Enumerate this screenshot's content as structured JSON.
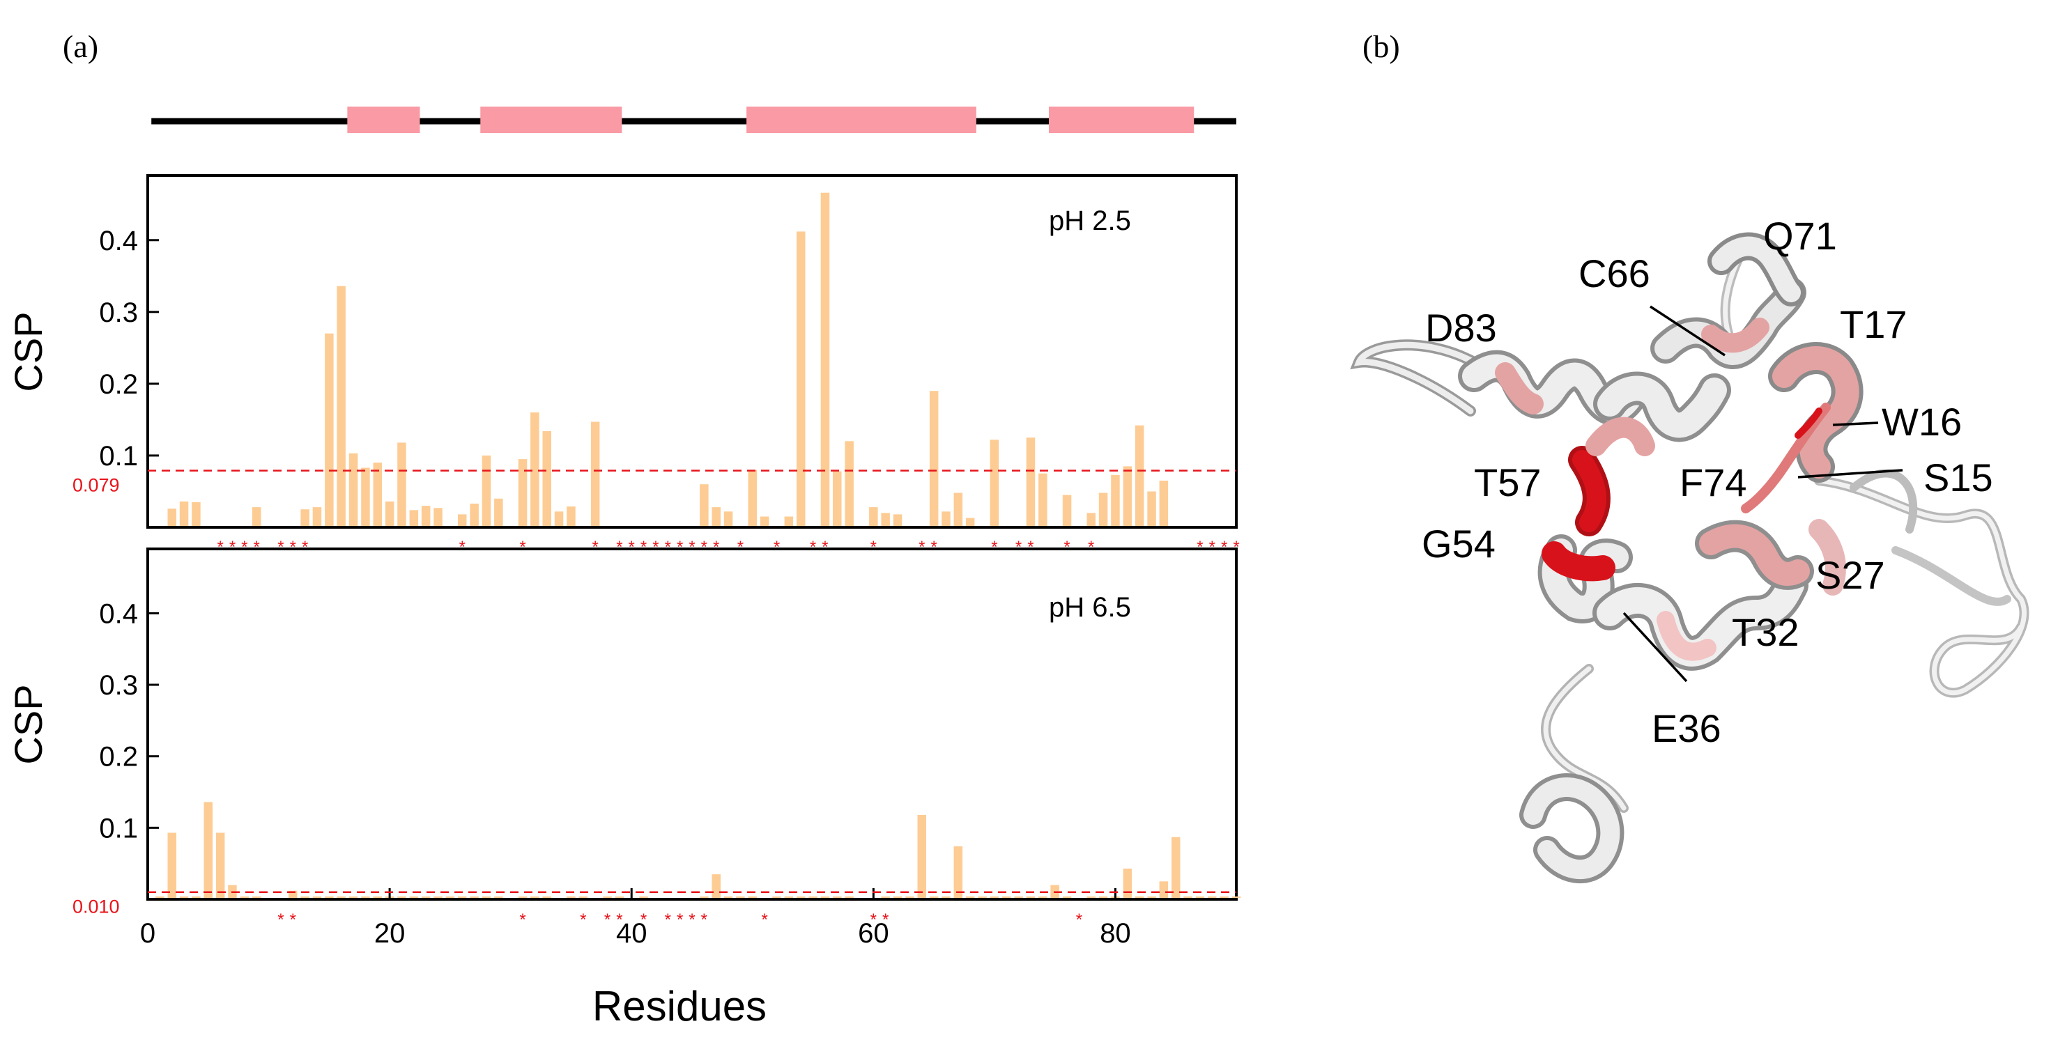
{
  "panel_a_label": "(a)",
  "panel_b_label": "(b)",
  "colors": {
    "bar": "#fdcc94",
    "helix_block": "#f99aa4",
    "coil_line": "#000000",
    "threshold": "#e8151b",
    "star": "#e8151b",
    "ribbon_white": "#ececec",
    "ribbon_grey": "#8a8a8a",
    "ribbon_pink": "#e4a3a3",
    "ribbon_red": "#d8121b"
  },
  "secondary_structure": {
    "helices": [
      [
        16.5,
        22.5
      ],
      [
        27.5,
        39.2
      ],
      [
        49.5,
        68.5
      ],
      [
        74.5,
        86.5
      ]
    ]
  },
  "chart_data": [
    {
      "type": "bar",
      "panel": "pH 2.5",
      "annotation": "pH 2.5",
      "ylabel": "CSP",
      "xlabel": "",
      "xlim": [
        0,
        90
      ],
      "ylim": [
        0,
        0.49
      ],
      "yticks": [
        "0.1",
        "0.2",
        "0.3",
        "0.4"
      ],
      "threshold_label": "0.079",
      "threshold": 0.079,
      "x": [
        1,
        2,
        3,
        4,
        5,
        6,
        7,
        8,
        9,
        10,
        11,
        12,
        13,
        14,
        15,
        16,
        17,
        18,
        19,
        20,
        21,
        22,
        23,
        24,
        25,
        26,
        27,
        28,
        29,
        30,
        31,
        32,
        33,
        34,
        35,
        36,
        37,
        38,
        39,
        40,
        41,
        42,
        43,
        44,
        45,
        46,
        47,
        48,
        49,
        50,
        51,
        52,
        53,
        54,
        55,
        56,
        57,
        58,
        59,
        60,
        61,
        62,
        63,
        64,
        65,
        66,
        67,
        68,
        69,
        70,
        71,
        72,
        73,
        74,
        75,
        76,
        77,
        78,
        79,
        80,
        81,
        82,
        83,
        84,
        85,
        86,
        87,
        88,
        89,
        90
      ],
      "values": [
        0,
        0.026,
        0.036,
        0.035,
        0,
        0,
        0,
        0,
        0.028,
        0,
        0,
        0,
        0.025,
        0.028,
        0.27,
        0.336,
        0.103,
        0.083,
        0.09,
        0.036,
        0.118,
        0.024,
        0.03,
        0.027,
        0,
        0.018,
        0.033,
        0.1,
        0.04,
        0,
        0.095,
        0.16,
        0.134,
        0.022,
        0.029,
        0,
        0.147,
        0,
        0,
        0,
        0,
        0,
        0,
        0,
        0,
        0.06,
        0.028,
        0.022,
        0,
        0.08,
        0.015,
        0,
        0.015,
        0.412,
        0,
        0.466,
        0.078,
        0.12,
        0,
        0.028,
        0.02,
        0.018,
        0,
        0,
        0.19,
        0.022,
        0.048,
        0.013,
        0,
        0.122,
        0,
        0,
        0.125,
        0.075,
        0,
        0.045,
        0,
        0.02,
        0.048,
        0.073,
        0.085,
        0.142,
        0.05,
        0.065,
        0,
        0,
        0,
        0,
        0,
        0
      ],
      "unassigned_marker": "*",
      "unassigned": [
        6,
        7,
        8,
        9,
        11,
        12,
        13,
        26,
        31,
        37,
        39,
        40,
        41,
        42,
        43,
        44,
        45,
        46,
        47,
        49,
        52,
        55,
        56,
        60,
        64,
        65,
        70,
        72,
        73,
        76,
        78,
        87,
        88,
        89,
        90
      ]
    },
    {
      "type": "bar",
      "panel": "pH 6.5",
      "annotation": "pH 6.5",
      "ylabel": "CSP",
      "xlabel": "Residues",
      "xlim": [
        0,
        90
      ],
      "ylim": [
        0,
        0.49
      ],
      "xticks": [
        "0",
        "20",
        "40",
        "60",
        "80"
      ],
      "yticks": [
        "0.1",
        "0.2",
        "0.3",
        "0.4"
      ],
      "threshold_label": "0.010",
      "threshold": 0.01,
      "x": [
        1,
        2,
        3,
        4,
        5,
        6,
        7,
        8,
        9,
        10,
        11,
        12,
        13,
        14,
        15,
        16,
        17,
        18,
        19,
        20,
        21,
        22,
        23,
        24,
        25,
        26,
        27,
        28,
        29,
        30,
        31,
        32,
        33,
        34,
        35,
        36,
        37,
        38,
        39,
        40,
        41,
        42,
        43,
        44,
        45,
        46,
        47,
        48,
        49,
        50,
        51,
        52,
        53,
        54,
        55,
        56,
        57,
        58,
        59,
        60,
        61,
        62,
        63,
        64,
        65,
        66,
        67,
        68,
        69,
        70,
        71,
        72,
        73,
        74,
        75,
        76,
        77,
        78,
        79,
        80,
        81,
        82,
        83,
        84,
        85,
        86,
        87,
        88,
        89,
        90
      ],
      "values": [
        0.004,
        0.093,
        0.004,
        0.004,
        0.136,
        0.093,
        0.02,
        0.004,
        0.004,
        0,
        0,
        0.012,
        0.004,
        0.004,
        0.004,
        0.004,
        0.004,
        0.004,
        0.004,
        0.004,
        0.004,
        0.004,
        0.004,
        0.004,
        0.004,
        0.004,
        0.004,
        0.004,
        0.004,
        0,
        0.004,
        0.004,
        0.004,
        0,
        0.004,
        0.004,
        0,
        0.004,
        0.004,
        0,
        0.004,
        0,
        0,
        0,
        0,
        0.004,
        0.035,
        0.004,
        0.004,
        0.004,
        0,
        0.004,
        0.004,
        0.004,
        0.004,
        0.004,
        0.004,
        0.004,
        0,
        0,
        0.004,
        0.004,
        0.004,
        0.118,
        0.004,
        0.004,
        0.074,
        0.004,
        0.004,
        0.004,
        0.004,
        0.004,
        0.004,
        0.004,
        0.02,
        0.004,
        0,
        0.004,
        0.004,
        0.004,
        0.043,
        0.004,
        0.004,
        0.025,
        0.087,
        0.004,
        0.004,
        0.004,
        0.004,
        0.004
      ],
      "unassigned_marker": "*",
      "unassigned": [
        11,
        12,
        31,
        36,
        38,
        39,
        41,
        43,
        44,
        45,
        46,
        51,
        60,
        61,
        77
      ]
    }
  ],
  "structure_labels": [
    "Q71",
    "C66",
    "T17",
    "D83",
    "W16",
    "T57",
    "F74",
    "S15",
    "G54",
    "S27",
    "T32",
    "E36"
  ]
}
